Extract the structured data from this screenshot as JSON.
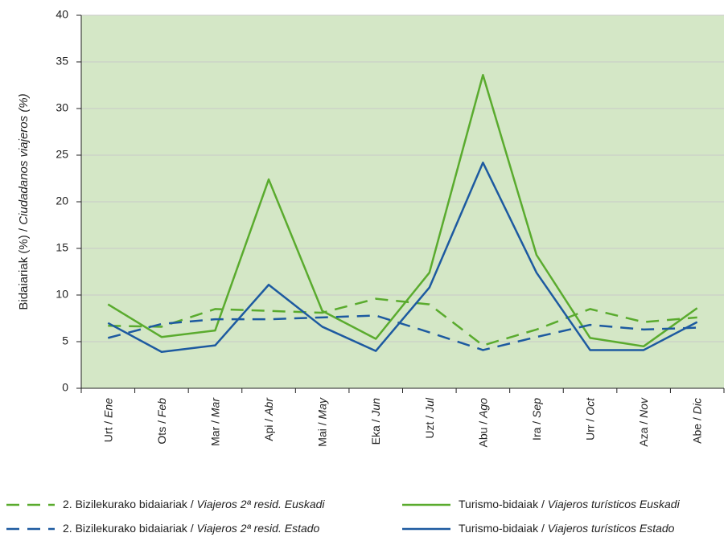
{
  "chart_data": {
    "type": "line",
    "ylabel": "Bidaiariak (%) / Ciudadanos viajeros (%)",
    "categories": [
      "Urt / Ene",
      "Ots / Feb",
      "Mar / Mar",
      "Api / Abr",
      "Mai / May",
      "Eka / Jun",
      "Uzt / Jul",
      "Abu / Ago",
      "Ira / Sep",
      "Urr / Oct",
      "Aza / Nov",
      "Abe / Dic"
    ],
    "series": [
      {
        "name": "2. Bizilekurako bidaiariak / Viajeros 2ª resid. Euskadi",
        "color": "#5aab2e",
        "line_style": "dashed",
        "values": [
          6.7,
          6.6,
          8.5,
          8.3,
          8.1,
          9.6,
          9.0,
          4.6,
          6.3,
          8.5,
          7.1,
          7.6
        ]
      },
      {
        "name": "Turismo-bidaiak / Viajeros turísticos Euskadi",
        "color": "#5aab2e",
        "line_style": "solid",
        "values": [
          9.0,
          5.5,
          6.2,
          22.4,
          8.3,
          5.3,
          12.4,
          33.6,
          14.3,
          5.4,
          4.5,
          8.6
        ]
      },
      {
        "name": "2. Bizilekurako bidaiariak / Viajeros 2ª resid. Estado",
        "color": "#1d5aa0",
        "line_style": "dashed",
        "values": [
          5.4,
          6.9,
          7.4,
          7.4,
          7.6,
          7.8,
          6.0,
          4.1,
          5.5,
          6.8,
          6.3,
          6.5
        ]
      },
      {
        "name": "Turismo-bidaiak / Viajeros turísticos Estado",
        "color": "#1d5aa0",
        "line_style": "solid",
        "values": [
          7.0,
          3.9,
          4.6,
          11.1,
          6.6,
          4.0,
          10.8,
          24.2,
          12.4,
          4.1,
          4.1,
          7.1
        ]
      }
    ],
    "ylim": [
      0,
      40
    ],
    "yticks": [
      0,
      5,
      10,
      15,
      20,
      25,
      30,
      35,
      40
    ],
    "grid": true,
    "background": "#d4e7c6"
  }
}
